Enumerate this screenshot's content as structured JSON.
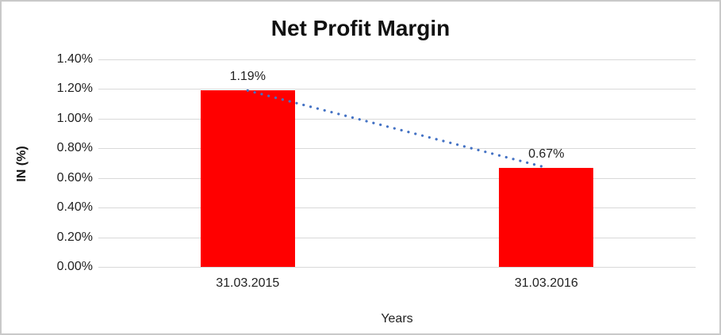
{
  "window": {
    "background": "#ffffff",
    "border_color": "#c9c9c9"
  },
  "chart_data": {
    "type": "bar",
    "title": "Net Profit Margin",
    "xlabel": "Years",
    "ylabel": "IN (%)",
    "categories": [
      "31.03.2015",
      "31.03.2016"
    ],
    "values": [
      1.19,
      0.67
    ],
    "value_labels": [
      "1.19%",
      "0.67%"
    ],
    "ylim": [
      0,
      1.4
    ],
    "y_ticks": [
      {
        "value": 0.0,
        "label": "0.00%"
      },
      {
        "value": 0.2,
        "label": "0.20%"
      },
      {
        "value": 0.4,
        "label": "0.40%"
      },
      {
        "value": 0.6,
        "label": "0.60%"
      },
      {
        "value": 0.8,
        "label": "0.80%"
      },
      {
        "value": 1.0,
        "label": "1.00%"
      },
      {
        "value": 1.2,
        "label": "1.20%"
      },
      {
        "value": 1.4,
        "label": "1.40%"
      }
    ],
    "grid": "horizontal",
    "gridline_color": "#d9d9d9",
    "bar_color": "#ff0000",
    "trendline": {
      "style": "dotted",
      "color": "#4472c4"
    },
    "legend": "none"
  }
}
